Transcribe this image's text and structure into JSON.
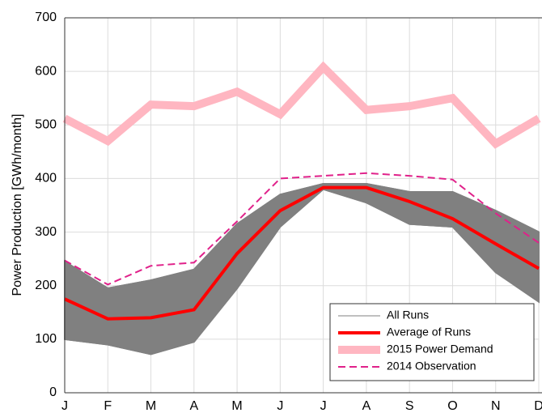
{
  "chart_data": {
    "type": "line",
    "y_label": "Power Production [GWh/month]",
    "categories": [
      "J",
      "F",
      "M",
      "A",
      "M",
      "J",
      "J",
      "A",
      "S",
      "O",
      "N",
      "D"
    ],
    "ylim": [
      0,
      700
    ],
    "yticks": [
      0,
      100,
      200,
      300,
      400,
      500,
      600,
      700
    ],
    "grid": true,
    "legend": "lower right",
    "series": [
      {
        "name": "All Runs",
        "color": "#808080",
        "runs": [
          [
            100,
            90,
            72,
            95,
            195,
            310,
            380,
            355,
            315,
            310,
            225,
            170
          ],
          [
            130,
            105,
            100,
            115,
            215,
            320,
            382,
            365,
            330,
            318,
            245,
            195
          ],
          [
            160,
            125,
            125,
            140,
            240,
            335,
            384,
            375,
            345,
            325,
            265,
            220
          ],
          [
            190,
            150,
            155,
            170,
            270,
            350,
            386,
            382,
            358,
            340,
            290,
            250
          ],
          [
            220,
            175,
            185,
            200,
            295,
            362,
            388,
            386,
            368,
            360,
            315,
            275
          ],
          [
            245,
            195,
            210,
            230,
            315,
            370,
            390,
            390,
            375,
            375,
            340,
            300
          ]
        ]
      },
      {
        "name": "Average of Runs",
        "color": "#ff0000",
        "values": [
          175,
          138,
          140,
          155,
          260,
          340,
          383,
          383,
          357,
          325,
          278,
          232
        ]
      },
      {
        "name": "2015 Power Demand",
        "color": "#ffb6c1",
        "values": [
          512,
          470,
          538,
          535,
          562,
          520,
          608,
          528,
          535,
          550,
          465,
          512
        ]
      },
      {
        "name": "2014 Observation",
        "color": "#e0218a",
        "dashed": true,
        "values": [
          247,
          202,
          237,
          243,
          320,
          400,
          405,
          410,
          405,
          398,
          335,
          280
        ]
      }
    ]
  }
}
